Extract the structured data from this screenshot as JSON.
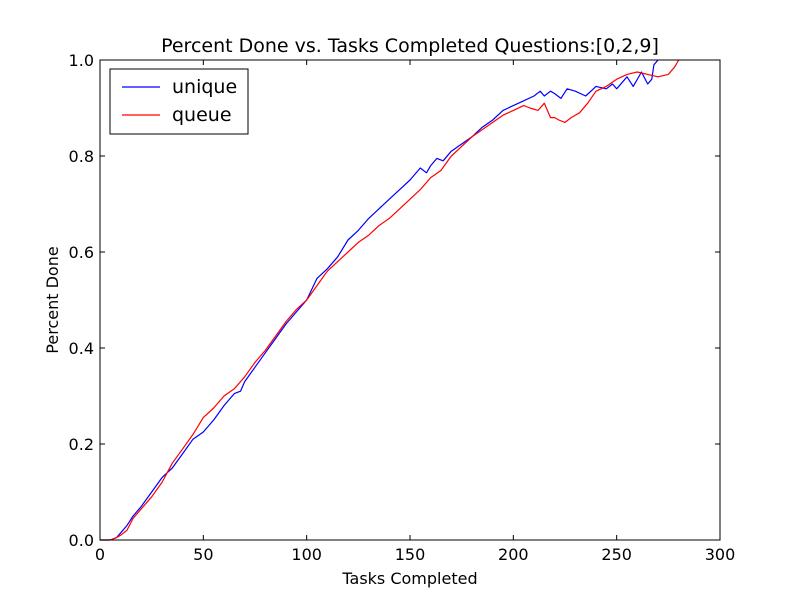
{
  "chart_data": {
    "type": "line",
    "title": "Percent Done vs. Tasks Completed Questions:[0,2,9]",
    "xlabel": "Tasks Completed",
    "ylabel": "Percent Done",
    "xlim": [
      0,
      300
    ],
    "ylim": [
      0.0,
      1.0
    ],
    "xticks": [
      "0",
      "50",
      "100",
      "150",
      "200",
      "250",
      "300"
    ],
    "yticks": [
      "0.0",
      "0.2",
      "0.4",
      "0.6",
      "0.8",
      "1.0"
    ],
    "grid": false,
    "legend": "top-left",
    "series": [
      {
        "name": "unique",
        "color": "#0000ff",
        "x": [
          0,
          5,
          8,
          10,
          13,
          16,
          20,
          25,
          30,
          35,
          40,
          45,
          50,
          55,
          60,
          65,
          68,
          70,
          75,
          80,
          85,
          90,
          95,
          100,
          105,
          110,
          115,
          120,
          125,
          130,
          135,
          140,
          145,
          150,
          155,
          158,
          160,
          163,
          166,
          170,
          175,
          180,
          185,
          190,
          195,
          200,
          205,
          210,
          213,
          215,
          218,
          220,
          223,
          226,
          230,
          235,
          240,
          245,
          248,
          250,
          255,
          258,
          262,
          265,
          267,
          268,
          270
        ],
        "y": [
          0.0,
          0.0,
          0.005,
          0.015,
          0.03,
          0.05,
          0.07,
          0.1,
          0.13,
          0.15,
          0.18,
          0.21,
          0.225,
          0.25,
          0.28,
          0.305,
          0.31,
          0.33,
          0.36,
          0.39,
          0.42,
          0.45,
          0.475,
          0.5,
          0.545,
          0.565,
          0.59,
          0.625,
          0.645,
          0.67,
          0.69,
          0.71,
          0.73,
          0.75,
          0.775,
          0.765,
          0.78,
          0.795,
          0.79,
          0.81,
          0.825,
          0.84,
          0.86,
          0.875,
          0.895,
          0.905,
          0.915,
          0.925,
          0.935,
          0.925,
          0.935,
          0.93,
          0.92,
          0.94,
          0.935,
          0.925,
          0.945,
          0.94,
          0.95,
          0.94,
          0.965,
          0.945,
          0.975,
          0.95,
          0.96,
          0.99,
          1.0
        ]
      },
      {
        "name": "queue",
        "color": "#ff0000",
        "x": [
          0,
          5,
          8,
          10,
          13,
          16,
          20,
          25,
          30,
          35,
          40,
          45,
          50,
          55,
          60,
          65,
          70,
          75,
          80,
          85,
          90,
          95,
          100,
          105,
          110,
          115,
          120,
          125,
          130,
          135,
          140,
          145,
          150,
          155,
          160,
          165,
          170,
          175,
          180,
          185,
          190,
          195,
          200,
          205,
          208,
          212,
          215,
          218,
          220,
          222,
          225,
          228,
          232,
          236,
          240,
          245,
          250,
          255,
          260,
          265,
          270,
          275,
          278,
          280
        ],
        "y": [
          0.0,
          0.0,
          0.005,
          0.01,
          0.02,
          0.045,
          0.065,
          0.09,
          0.12,
          0.16,
          0.19,
          0.22,
          0.255,
          0.275,
          0.3,
          0.315,
          0.34,
          0.37,
          0.395,
          0.425,
          0.455,
          0.48,
          0.5,
          0.53,
          0.56,
          0.58,
          0.6,
          0.62,
          0.635,
          0.655,
          0.67,
          0.69,
          0.71,
          0.73,
          0.755,
          0.77,
          0.8,
          0.82,
          0.84,
          0.855,
          0.87,
          0.885,
          0.895,
          0.905,
          0.9,
          0.895,
          0.91,
          0.88,
          0.88,
          0.875,
          0.87,
          0.88,
          0.89,
          0.91,
          0.935,
          0.945,
          0.96,
          0.97,
          0.975,
          0.97,
          0.965,
          0.97,
          0.985,
          1.0
        ]
      }
    ]
  }
}
